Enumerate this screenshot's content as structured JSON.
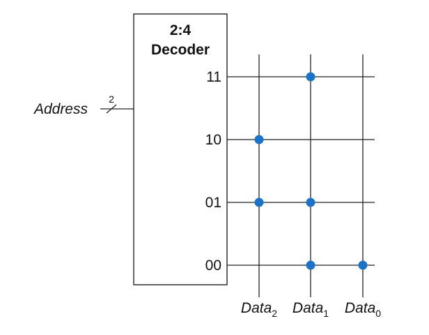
{
  "decoder": {
    "title_line1": "2:4",
    "title_line2": "Decoder"
  },
  "address": {
    "label": "Address",
    "bus_width": "2"
  },
  "rows": [
    {
      "label": "11",
      "dots": [
        false,
        true,
        false
      ]
    },
    {
      "label": "10",
      "dots": [
        true,
        false,
        false
      ]
    },
    {
      "label": "01",
      "dots": [
        true,
        true,
        false
      ]
    },
    {
      "label": "00",
      "dots": [
        false,
        true,
        true
      ]
    }
  ],
  "columns": [
    {
      "name": "Data",
      "sub": "2"
    },
    {
      "name": "Data",
      "sub": "1"
    },
    {
      "name": "Data",
      "sub": "0"
    }
  ],
  "colors": {
    "dot": "#1a73c8",
    "line": "#222222"
  }
}
